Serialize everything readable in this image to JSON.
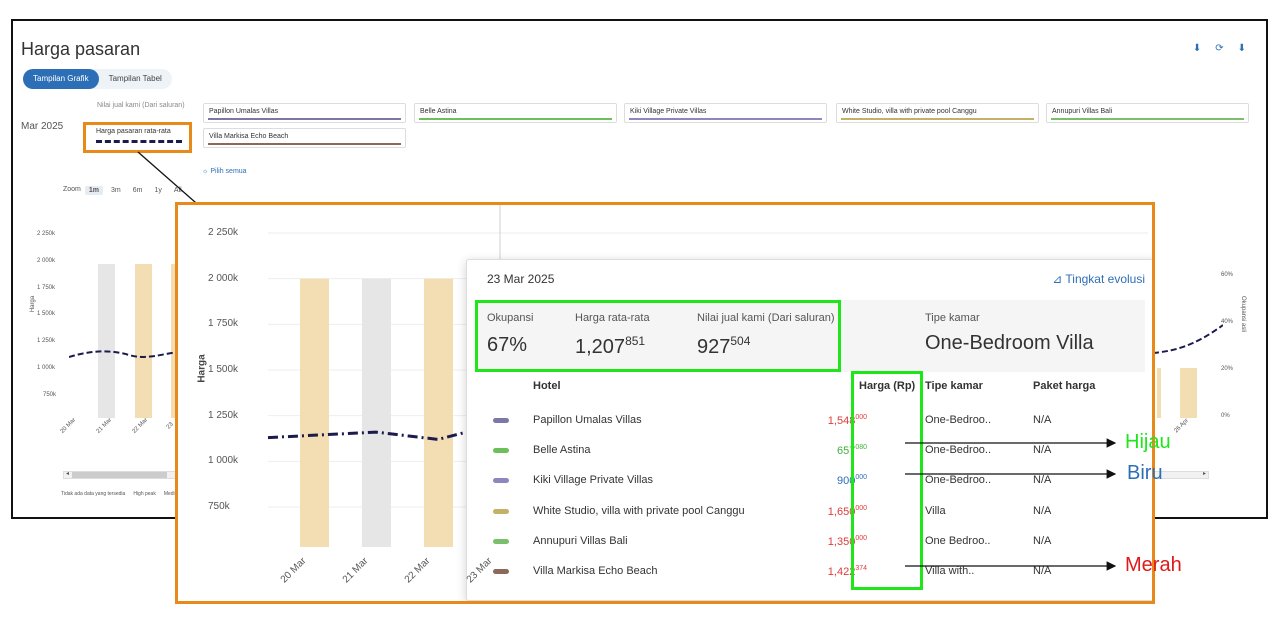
{
  "dashboard": {
    "title": "Harga pasaran",
    "actions": [
      "⬇",
      "⟳",
      "⬇"
    ],
    "view_tabs": [
      {
        "label": "Tampilan Grafik",
        "active": true
      },
      {
        "label": "Tampilan Tabel",
        "active": false
      }
    ],
    "period": "Mar 2025",
    "legend_own": "Nilai jual kami (Dari saluran)",
    "legend_market": "Harga pasaran rata-rata",
    "hotels": [
      {
        "name": "Papillon Umalas Villas",
        "color": "#7b78a6"
      },
      {
        "name": "Belle Astina",
        "color": "#6cbf5b"
      },
      {
        "name": "Kiki Village Private Villas",
        "color": "#8c87bf"
      },
      {
        "name": "White Studio, villa with private pool Canggu",
        "color": "#c5b068"
      },
      {
        "name": "Annupuri Villas Bali",
        "color": "#7bbf6a"
      },
      {
        "name": "Villa Markisa Echo Beach",
        "color": "#8b6a5b"
      }
    ],
    "select_all": "Pilih semua",
    "zoom_label": "Zoom",
    "zoom_options": [
      {
        "label": "1m",
        "active": true
      },
      {
        "label": "3m",
        "active": false
      },
      {
        "label": "6m",
        "active": false
      },
      {
        "label": "1y",
        "active": false
      },
      {
        "label": "All",
        "active": false
      }
    ],
    "y_ticks": [
      "2 250k",
      "2 000k",
      "1 750k",
      "1 500k",
      "1 250k",
      "1 000k",
      "750k"
    ],
    "right_ticks": [
      "60%",
      "40%",
      "20%",
      "0%"
    ],
    "y_title": "Harga",
    "right_title": "Okupansi asli",
    "x_ticks": [
      "20 Mar",
      "21 Mar",
      "22 Mar",
      "23"
    ],
    "x_tick_right": "26 Apr",
    "footer": [
      "Tidak ada data yang tersedia",
      "High peak",
      "Medium peak"
    ]
  },
  "chart_data": {
    "type": "line",
    "title": "",
    "ylabel": "Harga",
    "y_ticks": [
      "2 250k",
      "2 000k",
      "1 750k",
      "1 500k",
      "1 250k",
      "1 000k",
      "750k"
    ],
    "ylim": [
      750000,
      2250000
    ],
    "categories": [
      "20 Mar",
      "21 Mar",
      "22 Mar",
      "23 Mar"
    ],
    "series": [
      {
        "name": "Harga pasaran rata-rata",
        "values": [
          1130000,
          1160000,
          1120000,
          1207851
        ]
      }
    ],
    "peak_days": [
      "20 Mar",
      "22 Mar",
      "23 Mar"
    ]
  },
  "tooltip": {
    "date": "23 Mar 2025",
    "evolution_link": "Tingkat evolusi",
    "stats": [
      {
        "label": "Okupansi",
        "value": "67%",
        "sup": ""
      },
      {
        "label": "Harga rata-rata",
        "value": "1,207",
        "sup": "851"
      },
      {
        "label": "Nilai jual kami (Dari saluran)",
        "value": "927",
        "sup": "504"
      }
    ],
    "room_type_label": "Tipe kamar",
    "room_type_value": "One-Bedroom Villa",
    "columns": [
      "Hotel",
      "Harga (Rp)",
      "Tipe kamar",
      "Paket harga"
    ],
    "rows": [
      {
        "hotel": "Papillon Umalas Villas",
        "color": "#7b78a6",
        "price_main": "1,548",
        "price_sup": "000",
        "price_color": "#e03a3a",
        "room": "One-Bedroo..",
        "package": "N/A"
      },
      {
        "hotel": "Belle Astina",
        "color": "#6cbf5b",
        "price_main": "657",
        "price_sup": "080",
        "price_color": "#3db33a",
        "room": "One-Bedroo..",
        "package": "N/A"
      },
      {
        "hotel": "Kiki Village Private Villas",
        "color": "#8c87bf",
        "price_main": "900",
        "price_sup": "000",
        "price_color": "#2d6fb7",
        "room": "One-Bedroo..",
        "package": "N/A"
      },
      {
        "hotel": "White Studio, villa with private pool Canggu",
        "color": "#c5b068",
        "price_main": "1,650",
        "price_sup": "000",
        "price_color": "#e03a3a",
        "room": "Villa",
        "package": "N/A"
      },
      {
        "hotel": "Annupuri Villas Bali",
        "color": "#7bbf6a",
        "price_main": "1,350",
        "price_sup": "000",
        "price_color": "#e03a3a",
        "room": "One Bedroo..",
        "package": "N/A"
      },
      {
        "hotel": "Villa Markisa Echo Beach",
        "color": "#8b6a5b",
        "price_main": "1,422",
        "price_sup": "374",
        "price_color": "#e03a3a",
        "room": "Villa with..",
        "package": "N/A"
      }
    ]
  },
  "callouts": [
    {
      "label": "Hijau",
      "color": "#1ee619"
    },
    {
      "label": "Biru",
      "color": "#2d6fb7"
    },
    {
      "label": "Merah",
      "color": "#e01919"
    }
  ],
  "colors": {
    "highlight_orange": "#e88a1a",
    "highlight_green": "#1ee619",
    "accent_blue": "#2d6fb7",
    "market_line": "#1b1b4d",
    "peak_bar": "#f3deb4",
    "gray_bar": "#e6e6e6"
  }
}
